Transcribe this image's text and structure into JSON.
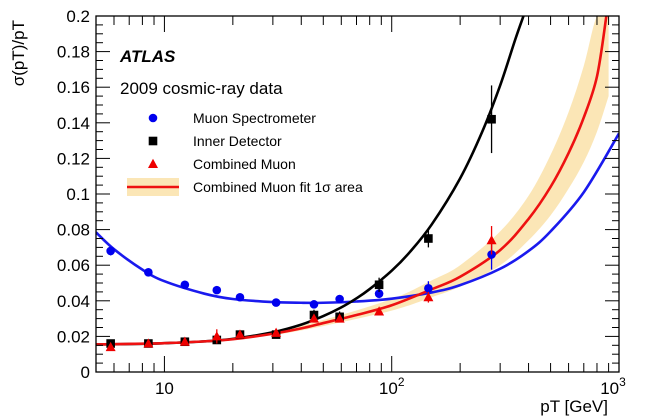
{
  "chart_data": {
    "type": "scatter",
    "x_scale": "log",
    "xlim": [
      5,
      1000
    ],
    "ylim": [
      0,
      0.2
    ],
    "xlabel": "pT [GeV]",
    "ylabel": "σ(pT)/pT",
    "grid": false,
    "experiment_label": "ATLAS",
    "subtitle": "2009 cosmic-ray data",
    "x_tick_labels": [
      {
        "value": 10,
        "label": "10",
        "exp": ""
      },
      {
        "value": 100,
        "label": "10",
        "exp": "2"
      },
      {
        "value": 1000,
        "label": "10",
        "exp": "3"
      }
    ],
    "y_tick_labels": [
      "0",
      "0.02",
      "0.04",
      "0.06",
      "0.08",
      "0.1",
      "0.12",
      "0.14",
      "0.16",
      "0.18",
      "0.2"
    ],
    "series": [
      {
        "name": "Muon Spectrometer",
        "marker": "circle",
        "color": "#0000ee",
        "x": [
          5.8,
          8.5,
          12.3,
          17.0,
          21.5,
          31.0,
          45.5,
          59.0,
          88.0,
          145.0,
          275.0
        ],
        "y": [
          0.068,
          0.056,
          0.049,
          0.046,
          0.042,
          0.039,
          0.038,
          0.041,
          0.044,
          0.047,
          0.066
        ],
        "yerr": [
          0.0025,
          0.0015,
          0.001,
          0.001,
          0.001,
          0.001,
          0.001,
          0.0015,
          0.0025,
          0.004,
          0.0085
        ]
      },
      {
        "name": "Inner Detector",
        "marker": "square",
        "color": "#000000",
        "x": [
          5.8,
          8.5,
          12.3,
          17.0,
          21.5,
          31.0,
          45.5,
          59.0,
          88.0,
          145.0,
          275.0
        ],
        "y": [
          0.016,
          0.016,
          0.017,
          0.018,
          0.021,
          0.021,
          0.032,
          0.031,
          0.049,
          0.075,
          0.142
        ],
        "yerr": [
          0.0015,
          0.001,
          0.001,
          0.0015,
          0.0015,
          0.001,
          0.003,
          0.003,
          0.004,
          0.005,
          0.019
        ]
      },
      {
        "name": "Combined Muon",
        "marker": "triangle",
        "color": "#ee0000",
        "x": [
          5.8,
          8.5,
          12.3,
          17.0,
          21.5,
          31.0,
          45.5,
          59.0,
          88.0,
          145.0,
          275.0
        ],
        "y": [
          0.014,
          0.016,
          0.017,
          0.02,
          0.021,
          0.022,
          0.03,
          0.03,
          0.034,
          0.042,
          0.074
        ],
        "yerr": [
          0.0015,
          0.001,
          0.001,
          0.004,
          0.0015,
          0.001,
          0.002,
          0.002,
          0.002,
          0.003,
          0.008
        ]
      }
    ],
    "fits": [
      {
        "name": "Muon Spectrometer",
        "color": "#1a1aee",
        "x": [
          5,
          6,
          8,
          10,
          15,
          20,
          30,
          40,
          50,
          70,
          100,
          150,
          200,
          300,
          400,
          500,
          700,
          1000
        ],
        "y": [
          0.0785,
          0.069,
          0.0575,
          0.051,
          0.044,
          0.041,
          0.0393,
          0.0389,
          0.0389,
          0.0396,
          0.0412,
          0.0447,
          0.0488,
          0.058,
          0.068,
          0.079,
          0.101,
          0.134
        ]
      },
      {
        "name": "Inner Detector",
        "color": "#000000",
        "x": [
          5,
          8,
          10,
          15,
          20,
          30,
          40,
          50,
          60,
          70,
          80,
          100,
          120,
          150,
          200,
          250,
          300,
          350,
          380
        ],
        "y": [
          0.0155,
          0.0158,
          0.0162,
          0.0172,
          0.0186,
          0.0223,
          0.0266,
          0.0314,
          0.0363,
          0.0414,
          0.0466,
          0.0569,
          0.0673,
          0.0829,
          0.1088,
          0.1349,
          0.161,
          0.187,
          0.2
        ]
      },
      {
        "name": "Combined Muon fit 1σ area",
        "color": "#ee1111",
        "x": [
          5,
          8,
          10,
          15,
          20,
          30,
          40,
          50,
          70,
          100,
          150,
          200,
          300,
          400,
          500,
          600,
          700,
          800,
          880
        ],
        "y": [
          0.0155,
          0.0159,
          0.0162,
          0.0172,
          0.0184,
          0.0215,
          0.0245,
          0.0275,
          0.032,
          0.0375,
          0.0465,
          0.0535,
          0.0685,
          0.086,
          0.104,
          0.123,
          0.143,
          0.166,
          0.2
        ]
      }
    ],
    "band": {
      "color": "#f7d27a",
      "x": [
        30,
        50,
        100,
        150,
        200,
        300,
        400,
        500,
        600,
        700,
        800,
        900
      ],
      "ylow": [
        0.0205,
        0.0258,
        0.0345,
        0.042,
        0.048,
        0.06,
        0.074,
        0.088,
        0.103,
        0.118,
        0.135,
        0.155
      ],
      "yhigh": [
        0.0225,
        0.0292,
        0.041,
        0.0515,
        0.06,
        0.079,
        0.099,
        0.122,
        0.146,
        0.172,
        0.2,
        0.2
      ]
    },
    "legend": {
      "placement": "top-left",
      "entries": [
        {
          "label": "Muon Spectrometer",
          "marker": "circle",
          "color": "#0000ee"
        },
        {
          "label": "Inner Detector",
          "marker": "square",
          "color": "#000000"
        },
        {
          "label": "Combined Muon",
          "marker": "triangle",
          "color": "#ee0000"
        },
        {
          "label": "Combined Muon fit 1σ area",
          "marker": "band-line",
          "color": "#ee1111",
          "fill": "#f7d27a"
        }
      ]
    }
  }
}
